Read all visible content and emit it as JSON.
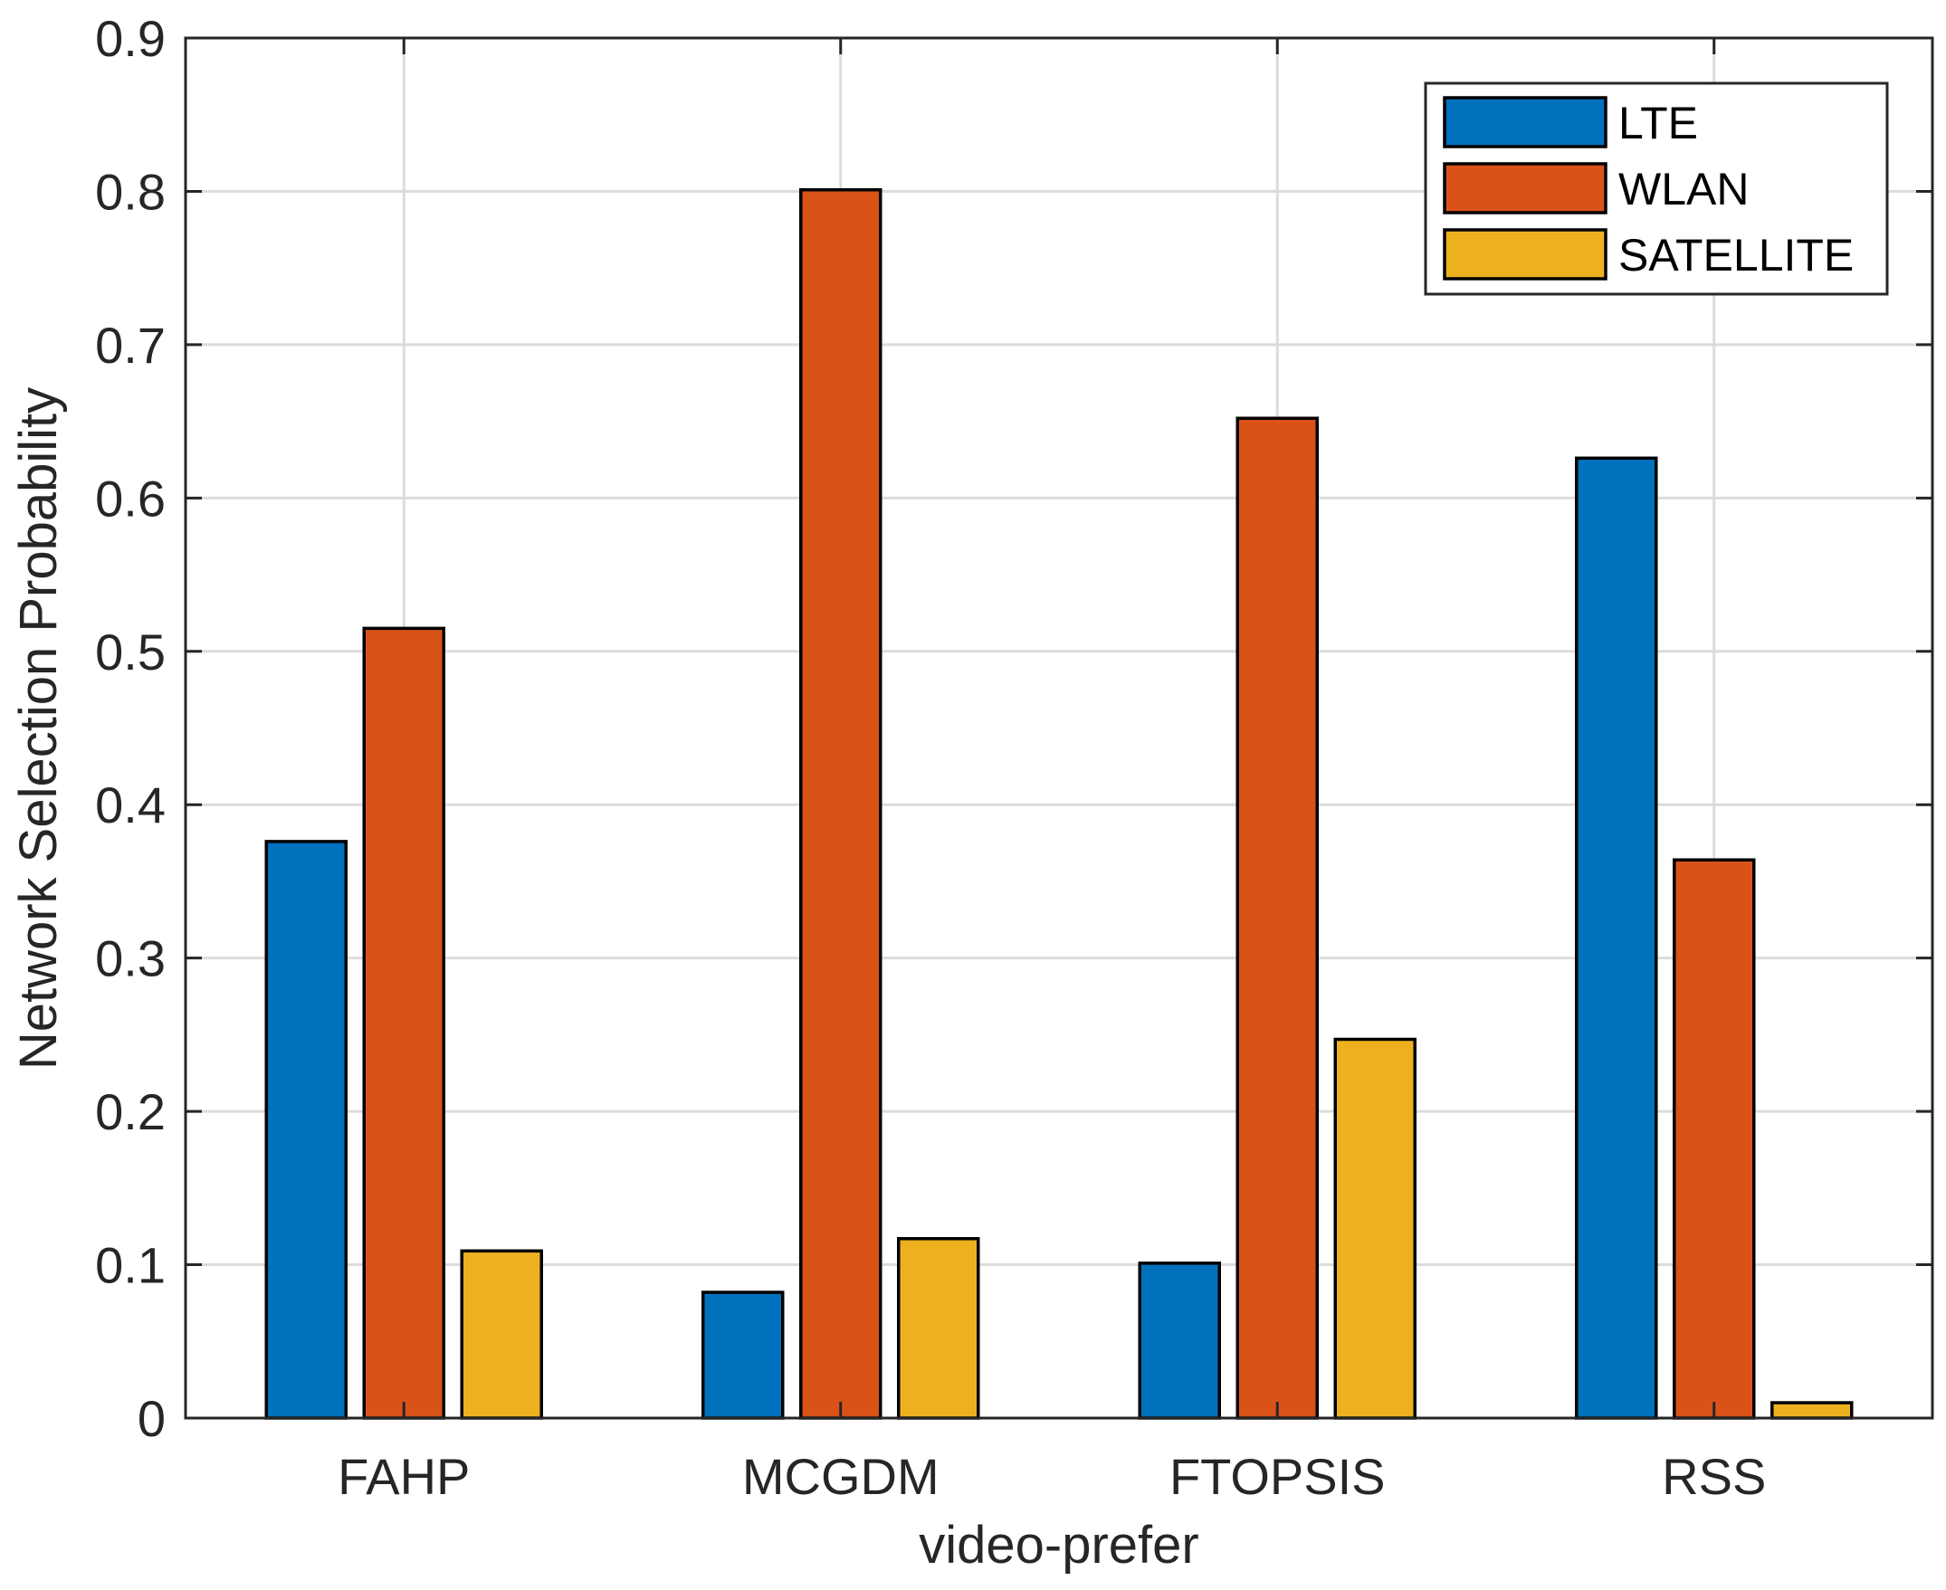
{
  "chart_data": {
    "type": "bar",
    "title": "",
    "xlabel": "video-prefer",
    "ylabel": "Network Selection Probability",
    "categories": [
      "FAHP",
      "MCGDM",
      "FTOPSIS",
      "RSS"
    ],
    "series": [
      {
        "name": "LTE",
        "color": "#0072BD",
        "values": [
          0.376,
          0.082,
          0.101,
          0.626
        ]
      },
      {
        "name": "WLAN",
        "color": "#D95319",
        "values": [
          0.515,
          0.801,
          0.652,
          0.364
        ]
      },
      {
        "name": "SATELLITE",
        "color": "#EDB120",
        "values": [
          0.109,
          0.117,
          0.247,
          0.01
        ]
      }
    ],
    "ylim": [
      0,
      0.9
    ],
    "yticks": [
      "0",
      "0.1",
      "0.2",
      "0.3",
      "0.4",
      "0.5",
      "0.6",
      "0.7",
      "0.8",
      "0.9"
    ],
    "ytick_values": [
      0,
      0.1,
      0.2,
      0.3,
      0.4,
      0.5,
      0.6,
      0.7,
      0.8,
      0.9
    ],
    "grid": true,
    "legend_position": "top-right"
  }
}
